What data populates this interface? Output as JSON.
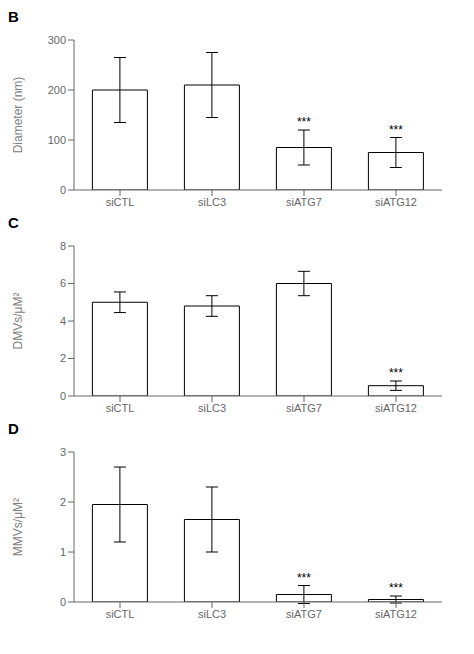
{
  "chart_data": [
    {
      "type": "bar",
      "title": "B",
      "categories": [
        "siCTL",
        "siLC3",
        "siATG7",
        "siATG12"
      ],
      "values": [
        200,
        210,
        85,
        75
      ],
      "errors": [
        65,
        65,
        35,
        30
      ],
      "annotations": [
        null,
        null,
        "***",
        "***"
      ],
      "ylabel": "Diameter (nm)",
      "ylim": [
        0,
        300
      ],
      "yticks": [
        0,
        100,
        200,
        300
      ],
      "color": "#ffffff"
    },
    {
      "type": "bar",
      "title": "C",
      "categories": [
        "siCTL",
        "siLC3",
        "siATG7",
        "siATG12"
      ],
      "values": [
        5.0,
        4.8,
        6.0,
        0.55
      ],
      "errors": [
        0.55,
        0.55,
        0.65,
        0.25
      ],
      "annotations": [
        null,
        null,
        null,
        "***"
      ],
      "ylabel": "DMVs/μM²",
      "ylim": [
        0,
        8
      ],
      "yticks": [
        0,
        2,
        4,
        6,
        8
      ],
      "color": "#ffffff"
    },
    {
      "type": "bar",
      "title": "D",
      "categories": [
        "siCTL",
        "siLC3",
        "siATG7",
        "siATG12"
      ],
      "values": [
        1.95,
        1.65,
        0.15,
        0.05
      ],
      "errors": [
        0.75,
        0.65,
        0.18,
        0.07
      ],
      "annotations": [
        null,
        null,
        "***",
        "***"
      ],
      "ylabel": "MMVs/μM²",
      "ylim": [
        0,
        3
      ],
      "yticks": [
        0,
        1,
        2,
        3
      ],
      "color": "#ffffff"
    }
  ]
}
